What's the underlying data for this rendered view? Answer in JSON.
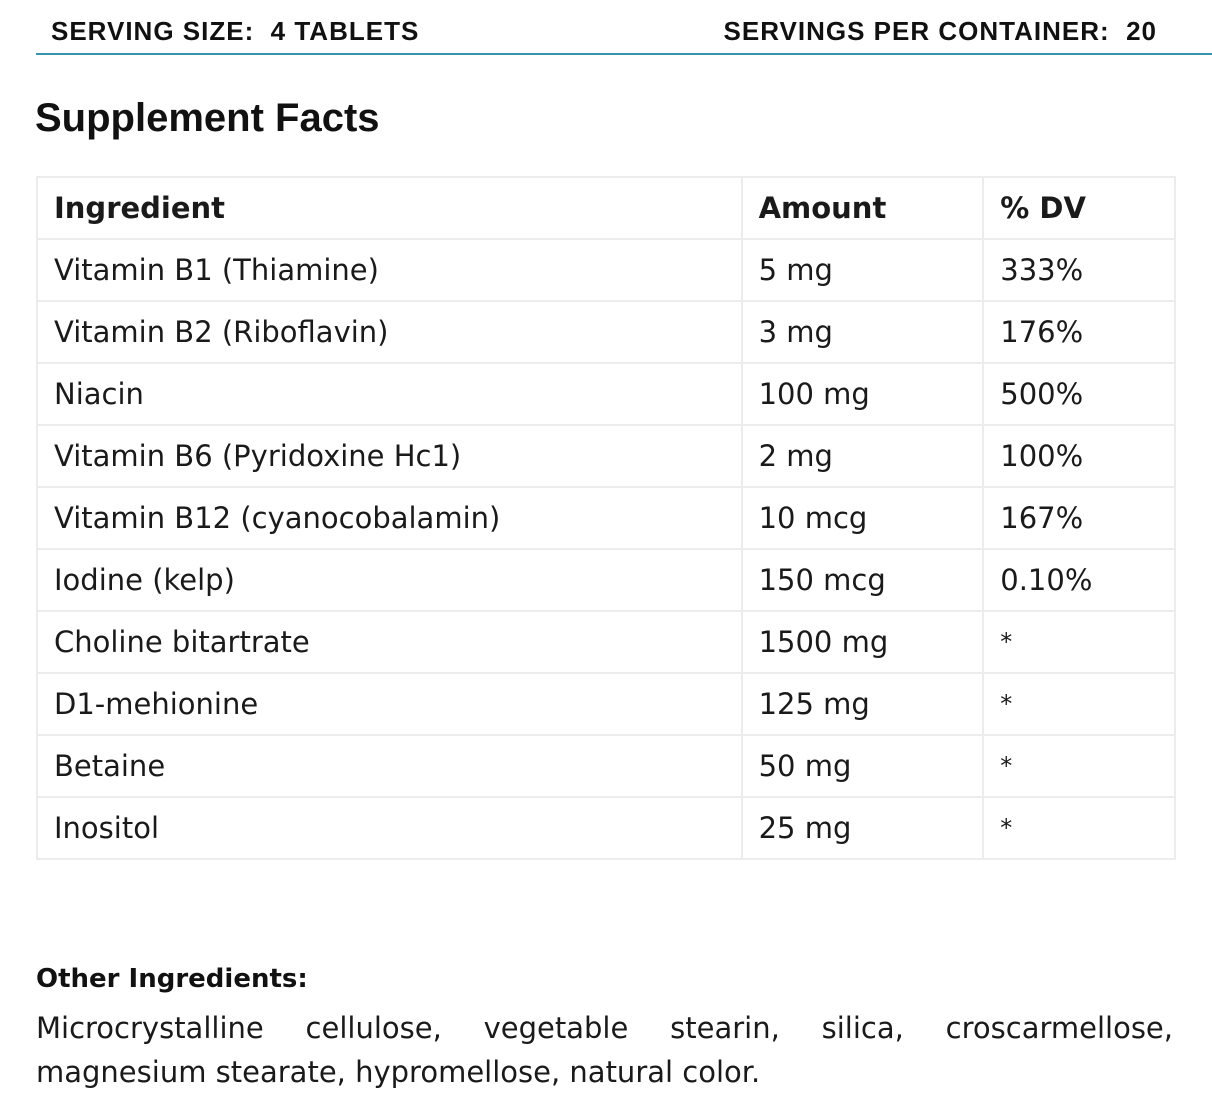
{
  "serving": {
    "size": "SERVING SIZE:  4 TABLETS",
    "per_container": "SERVINGS PER CONTAINER:  20"
  },
  "title": "Supplement Facts",
  "table": {
    "headers": [
      "Ingredient",
      "Amount",
      "% DV"
    ],
    "rows": [
      [
        "Vitamin B1 (Thiamine)",
        "5 mg",
        "333%"
      ],
      [
        "Vitamin B2 (Riboflavin)",
        "3 mg",
        "176%"
      ],
      [
        "Niacin",
        "100 mg",
        "500%"
      ],
      [
        "Vitamin B6 (Pyridoxine Hc1)",
        "2 mg",
        "100%"
      ],
      [
        "Vitamin B12 (cyanocobalamin)",
        "10 mcg",
        "167%"
      ],
      [
        "Iodine (kelp)",
        "150 mcg",
        "0.10%"
      ],
      [
        "Choline bitartrate",
        "1500 mg",
        "*"
      ],
      [
        "D1-mehionine",
        "125 mg",
        "*"
      ],
      [
        "Betaine",
        "50 mg",
        "*"
      ],
      [
        "Inositol",
        "25 mg",
        "*"
      ]
    ]
  },
  "other_ingredients": {
    "label": "Other Ingredients:",
    "text": "Microcrystalline cellulose, vegetable stearin, silica, croscarmellose, magnesium stearate, hypromellose, natural color."
  },
  "colors": {
    "rule": "#3a93ad",
    "grid": "#ececec",
    "text": "#1a1a1a"
  }
}
